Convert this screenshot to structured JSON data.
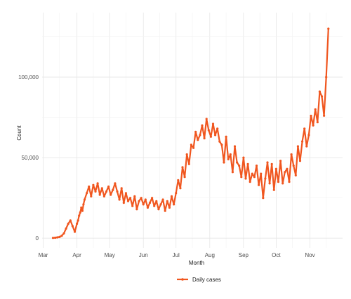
{
  "chart_data": {
    "type": "line",
    "title": "",
    "xlabel": "Month",
    "ylabel": "Count",
    "x_ticks": [
      "Mar",
      "Apr",
      "May",
      "Jun",
      "Jul",
      "Aug",
      "Sep",
      "Oct",
      "Nov"
    ],
    "y_ticks": [
      "0",
      "50,000",
      "100,000"
    ],
    "y_tick_values": [
      0,
      50000,
      100000
    ],
    "xlim": [
      "2020-02-29",
      "2020-12-01"
    ],
    "ylim": [
      -6000,
      140000
    ],
    "grid": true,
    "legend_position": "bottom",
    "line_color": "#f0561f",
    "series": [
      {
        "name": "Daily cases",
        "x": [
          "2020-03-10",
          "2020-03-12",
          "2020-03-14",
          "2020-03-16",
          "2020-03-18",
          "2020-03-20",
          "2020-03-22",
          "2020-03-24",
          "2020-03-26",
          "2020-03-28",
          "2020-03-30",
          "2020-04-01",
          "2020-04-02",
          "2020-04-03",
          "2020-04-04",
          "2020-04-05",
          "2020-04-06",
          "2020-04-07",
          "2020-04-08",
          "2020-04-10",
          "2020-04-12",
          "2020-04-14",
          "2020-04-16",
          "2020-04-18",
          "2020-04-20",
          "2020-04-22",
          "2020-04-24",
          "2020-04-26",
          "2020-04-28",
          "2020-04-30",
          "2020-05-02",
          "2020-05-04",
          "2020-05-06",
          "2020-05-08",
          "2020-05-10",
          "2020-05-12",
          "2020-05-14",
          "2020-05-16",
          "2020-05-18",
          "2020-05-20",
          "2020-05-22",
          "2020-05-24",
          "2020-05-26",
          "2020-05-28",
          "2020-05-30",
          "2020-06-01",
          "2020-06-03",
          "2020-06-05",
          "2020-06-07",
          "2020-06-09",
          "2020-06-11",
          "2020-06-13",
          "2020-06-15",
          "2020-06-17",
          "2020-06-19",
          "2020-06-21",
          "2020-06-23",
          "2020-06-25",
          "2020-06-27",
          "2020-06-29",
          "2020-07-01",
          "2020-07-03",
          "2020-07-05",
          "2020-07-07",
          "2020-07-09",
          "2020-07-11",
          "2020-07-13",
          "2020-07-15",
          "2020-07-17",
          "2020-07-19",
          "2020-07-21",
          "2020-07-23",
          "2020-07-25",
          "2020-07-27",
          "2020-07-29",
          "2020-07-31",
          "2020-08-02",
          "2020-08-04",
          "2020-08-06",
          "2020-08-08",
          "2020-08-10",
          "2020-08-12",
          "2020-08-14",
          "2020-08-16",
          "2020-08-18",
          "2020-08-20",
          "2020-08-22",
          "2020-08-24",
          "2020-08-26",
          "2020-08-28",
          "2020-08-30",
          "2020-09-01",
          "2020-09-03",
          "2020-09-05",
          "2020-09-07",
          "2020-09-09",
          "2020-09-11",
          "2020-09-13",
          "2020-09-15",
          "2020-09-17",
          "2020-09-19",
          "2020-09-21",
          "2020-09-23",
          "2020-09-25",
          "2020-09-27",
          "2020-09-29",
          "2020-10-01",
          "2020-10-03",
          "2020-10-05",
          "2020-10-07",
          "2020-10-09",
          "2020-10-11",
          "2020-10-13",
          "2020-10-15",
          "2020-10-17",
          "2020-10-19",
          "2020-10-21",
          "2020-10-23",
          "2020-10-25",
          "2020-10-27",
          "2020-10-29",
          "2020-10-31",
          "2020-11-02",
          "2020-11-04",
          "2020-11-06",
          "2020-11-08",
          "2020-11-10",
          "2020-11-12",
          "2020-11-14",
          "2020-11-16",
          "2020-11-18"
        ],
        "y": [
          200,
          300,
          500,
          800,
          1500,
          3000,
          6000,
          9000,
          11000,
          7500,
          4000,
          9000,
          11000,
          14000,
          16000,
          19000,
          17000,
          21000,
          24000,
          28000,
          32000,
          26000,
          33000,
          29000,
          34000,
          27000,
          31000,
          26000,
          29000,
          32000,
          27000,
          30000,
          34000,
          29000,
          24000,
          31000,
          22000,
          28000,
          23000,
          25000,
          20000,
          26000,
          18000,
          23000,
          25000,
          21000,
          24000,
          19000,
          22000,
          25000,
          20000,
          23000,
          18000,
          21000,
          24000,
          17000,
          23000,
          19000,
          26000,
          21000,
          28000,
          36000,
          31000,
          44000,
          38000,
          52000,
          46000,
          58000,
          56000,
          66000,
          61000,
          64000,
          70000,
          62000,
          74000,
          67000,
          63000,
          71000,
          64000,
          68000,
          60000,
          58000,
          47000,
          63000,
          49000,
          52000,
          41000,
          57000,
          47000,
          45000,
          38000,
          50000,
          37000,
          46000,
          35000,
          40000,
          38000,
          45000,
          33000,
          40000,
          25000,
          37000,
          47000,
          34000,
          46000,
          30000,
          43000,
          35000,
          48000,
          34000,
          41000,
          43000,
          35000,
          52000,
          45000,
          39000,
          57000,
          48000,
          60000,
          68000,
          57000,
          64000,
          76000,
          70000,
          80000,
          72000,
          91000,
          88000,
          76000,
          100000,
          130000
        ]
      }
    ]
  }
}
